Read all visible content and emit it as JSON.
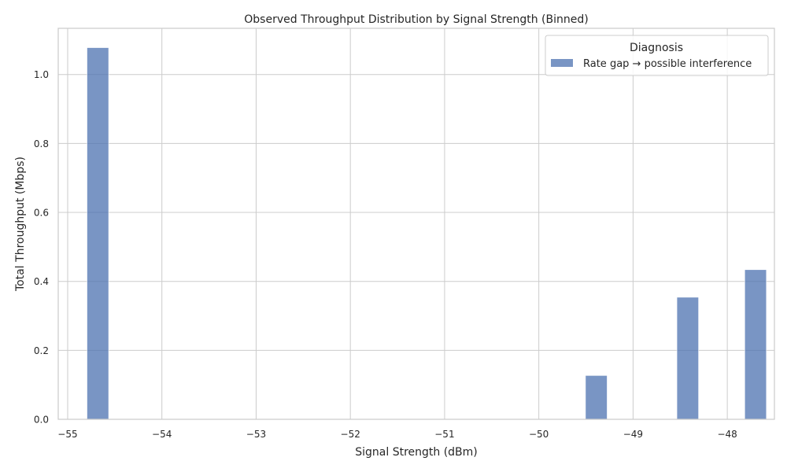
{
  "chart_data": {
    "type": "bar",
    "title": "Observed Throughput Distribution by Signal Strength (Binned)",
    "xlabel": "Signal Strength (dBm)",
    "ylabel": "Total Throughput (Mbps)",
    "xlim": [
      -55.1,
      -47.5
    ],
    "ylim": [
      0,
      1.134
    ],
    "xticks": [
      -55,
      -54,
      -53,
      -52,
      -51,
      -50,
      -49,
      -48
    ],
    "xtick_labels": [
      "−55",
      "−54",
      "−53",
      "−52",
      "−51",
      "−50",
      "−49",
      "−48"
    ],
    "yticks": [
      0.0,
      0.2,
      0.4,
      0.6,
      0.8,
      1.0
    ],
    "ytick_labels": [
      "0.0",
      "0.2",
      "0.4",
      "0.6",
      "0.8",
      "1.0"
    ],
    "grid": true,
    "legend": {
      "title": "Diagnosis",
      "position": "top-right",
      "entries": [
        "Rate gap → possible interference"
      ]
    },
    "bar_width": 0.23,
    "series": [
      {
        "name": "Rate gap → possible interference",
        "color": "#4c72b0",
        "x": [
          -54.68,
          -49.39,
          -48.42,
          -47.7
        ],
        "values": [
          1.078,
          0.127,
          0.354,
          0.434
        ]
      }
    ]
  }
}
